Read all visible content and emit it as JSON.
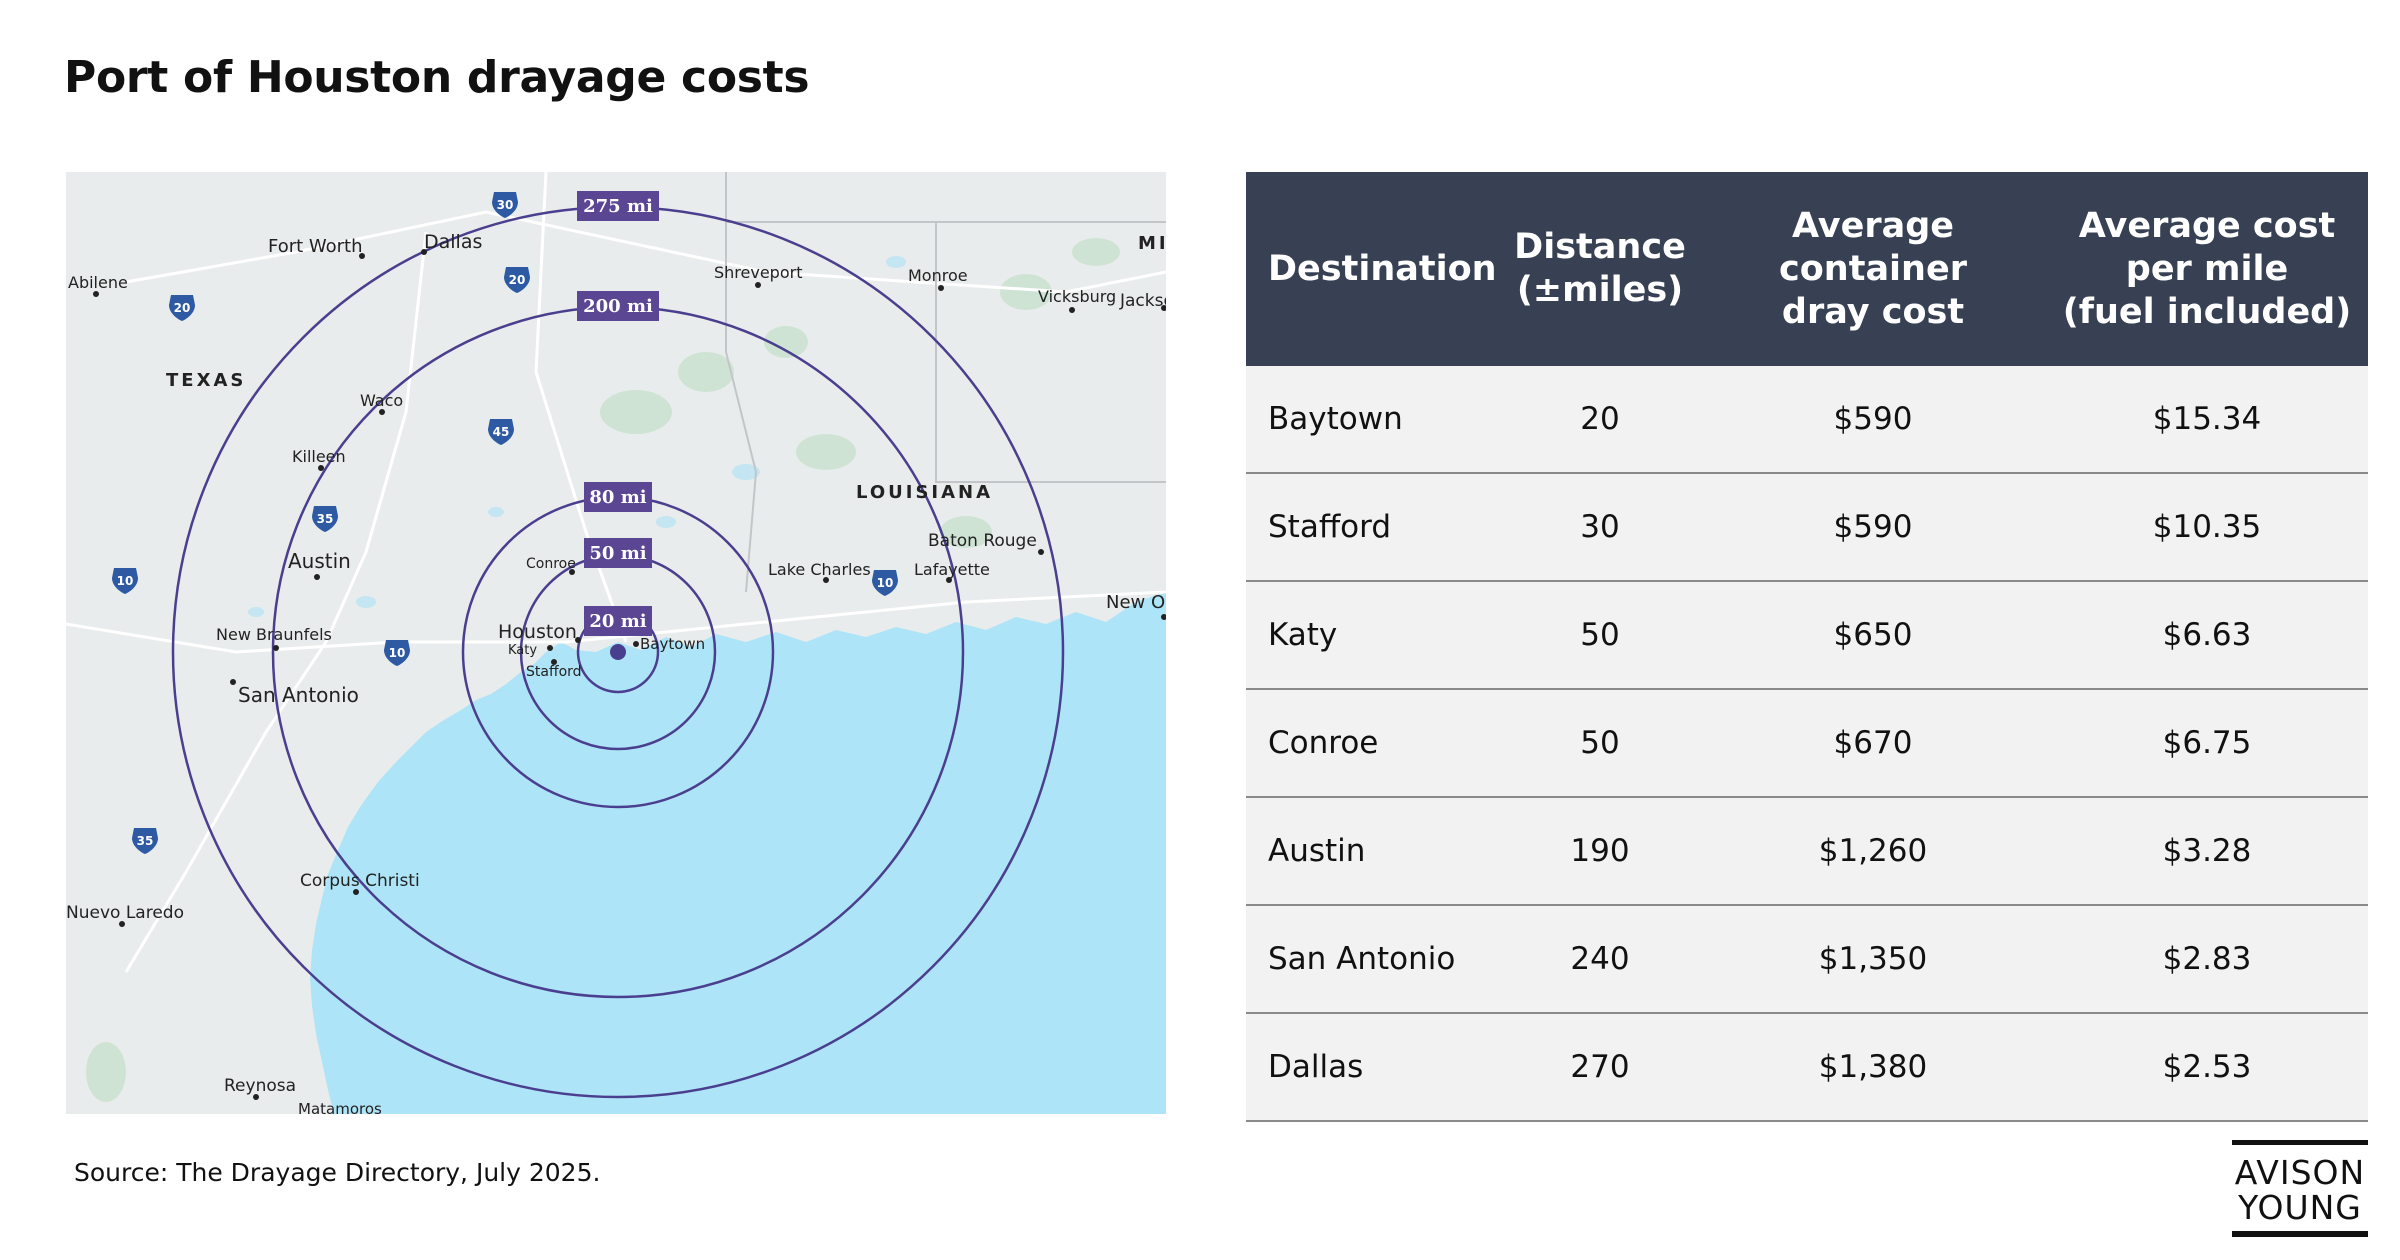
{
  "title": "Port of Houston drayage costs",
  "map": {
    "center": "Baytown",
    "rings": [
      {
        "label": "275 mi",
        "miles": 275
      },
      {
        "label": "200 mi",
        "miles": 200
      },
      {
        "label": "80 mi",
        "miles": 80
      },
      {
        "label": "50 mi",
        "miles": 50
      },
      {
        "label": "20 mi",
        "miles": 20
      }
    ],
    "regions": [
      "TEXAS",
      "LOUISIANA",
      "MIS"
    ],
    "cities": [
      "Fort Worth",
      "Dallas",
      "Abilene",
      "Shreveport",
      "Monroe",
      "Vicksburg",
      "Jackso",
      "Waco",
      "Killeen",
      "Austin",
      "New Braunfels",
      "San Antonio",
      "Conroe",
      "Houston",
      "Katy",
      "Stafford",
      "Baytown",
      "Lake Charles",
      "Lafayette",
      "Baton Rouge",
      "New O",
      "Corpus Christi",
      "Nuevo Laredo",
      "Reynosa",
      "Matamoros"
    ],
    "highways": [
      "30",
      "20",
      "20",
      "45",
      "35",
      "10",
      "10",
      "10",
      "35"
    ],
    "colors": {
      "ring": "#4a3f8f",
      "label_bg": "#5b4694",
      "water": "#aee4f7",
      "land": "#e9ecec"
    }
  },
  "table": {
    "headers": {
      "destination": "Destination",
      "distance": [
        "Distance",
        "(±miles)"
      ],
      "cost": [
        "Average container",
        "dray cost"
      ],
      "per_mile": [
        "Average cost",
        "per mile",
        "(fuel included)"
      ]
    },
    "rows": [
      {
        "destination": "Baytown",
        "distance": "20",
        "cost": "$590",
        "per_mile": "$15.34"
      },
      {
        "destination": "Stafford",
        "distance": "30",
        "cost": "$590",
        "per_mile": "$10.35"
      },
      {
        "destination": "Katy",
        "distance": "50",
        "cost": "$650",
        "per_mile": "$6.63"
      },
      {
        "destination": "Conroe",
        "distance": "50",
        "cost": "$670",
        "per_mile": "$6.75"
      },
      {
        "destination": "Austin",
        "distance": "190",
        "cost": "$1,260",
        "per_mile": "$3.28"
      },
      {
        "destination": "San Antonio",
        "distance": "240",
        "cost": "$1,350",
        "per_mile": "$2.83"
      },
      {
        "destination": "Dallas",
        "distance": "270",
        "cost": "$1,380",
        "per_mile": "$2.53"
      }
    ]
  },
  "source": "Source: The Drayage Directory, July 2025.",
  "logo": {
    "line1": "AVISON",
    "line2": "YOUNG"
  }
}
